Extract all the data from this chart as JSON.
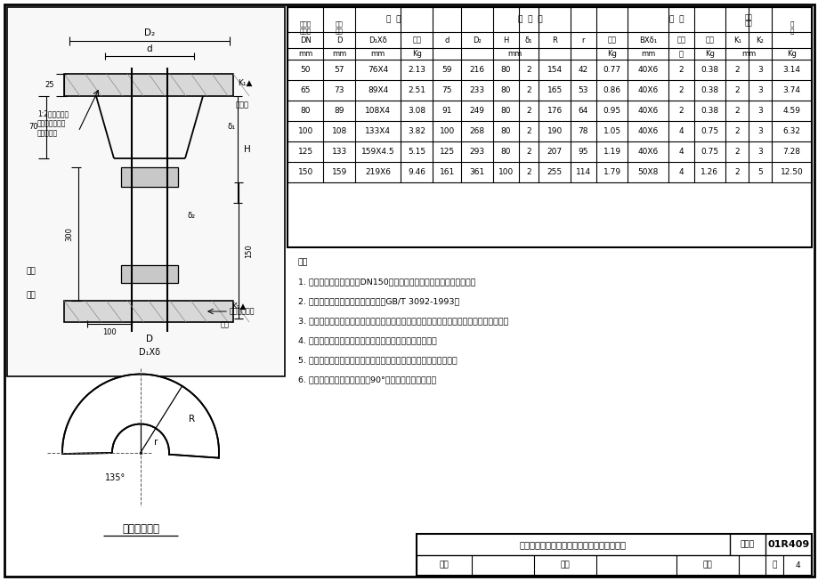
{
  "title": "不保温管道穿屋面（盖板）现场打洞防雨装置",
  "figure_number": "01R409",
  "page": "4",
  "bg_color": "#ffffff",
  "table_data": [
    [
      "50",
      "57",
      "76X4",
      "2.13",
      "59",
      "216",
      "80",
      "2",
      "154",
      "42",
      "0.77",
      "40X6",
      "2",
      "0.38",
      "2",
      "3",
      "3.14"
    ],
    [
      "65",
      "73",
      "89X4",
      "2.51",
      "75",
      "233",
      "80",
      "2",
      "165",
      "53",
      "0.86",
      "40X6",
      "2",
      "0.38",
      "2",
      "3",
      "3.74"
    ],
    [
      "80",
      "89",
      "108X4",
      "3.08",
      "91",
      "249",
      "80",
      "2",
      "176",
      "64",
      "0.95",
      "40X6",
      "2",
      "0.38",
      "2",
      "3",
      "4.59"
    ],
    [
      "100",
      "108",
      "133X4",
      "3.82",
      "100",
      "268",
      "80",
      "2",
      "190",
      "78",
      "1.05",
      "40X6",
      "4",
      "0.75",
      "2",
      "3",
      "6.32"
    ],
    [
      "125",
      "133",
      "159X4.5",
      "5.15",
      "125",
      "293",
      "80",
      "2",
      "207",
      "95",
      "1.19",
      "40X6",
      "4",
      "0.75",
      "2",
      "3",
      "7.28"
    ],
    [
      "150",
      "159",
      "219X6",
      "9.46",
      "161",
      "361",
      "100",
      "2",
      "255",
      "114",
      "1.79",
      "50X8",
      "4",
      "1.26",
      "2",
      "5",
      "12.50"
    ]
  ],
  "notes": [
    "注：",
    "1. 本装置适用于工程直径DN150以下的管道现场打洞，二次安装套管。",
    "2. 套管亦可低压流体输送焊接钉管（GB/T 3092-1993）",
    "3. 若管子热膨胀是向下伸长时，则锥形罩与盖板或层面之间的间隙应加上管子的热膨胀量。",
    "4. 锥形罩和罩板内外表面均应刷防锈漆两道，调合漆两道。",
    "5. 若管子外径与表列数量不同时，锥形罩可根据管子外径现场配制。",
    "6. 扁钔按图示要求，两端扭轤90°后均匀焊接在套管上。"
  ],
  "col_weights": [
    25,
    22,
    32,
    22,
    20,
    22,
    18,
    14,
    22,
    18,
    22,
    28,
    18,
    22,
    16,
    16,
    28
  ]
}
